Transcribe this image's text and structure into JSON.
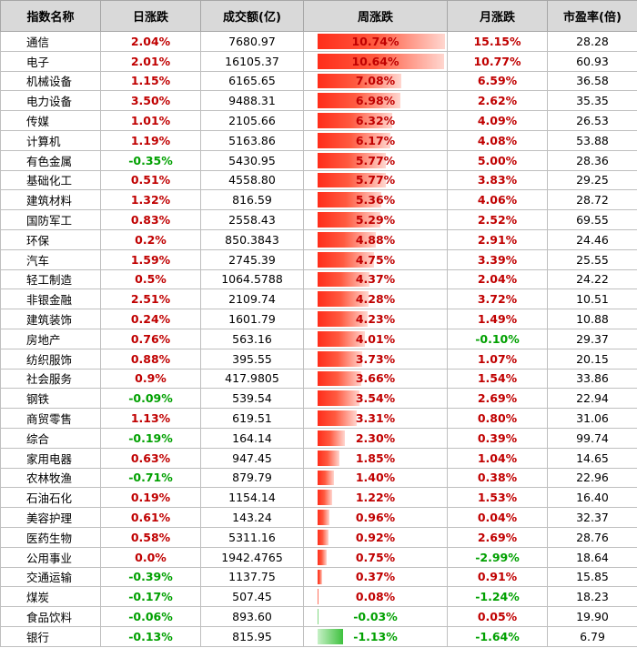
{
  "headers": [
    "指数名称",
    "日涨跌",
    "成交额(亿)",
    "周涨跌",
    "月涨跌",
    "市盈率(倍)"
  ],
  "rows": [
    {
      "name": "通信",
      "daily": "2.04%",
      "volume": "7680.97",
      "weekly": "10.74%",
      "weekly_value": 10.74,
      "monthly": "15.15%",
      "pe": "28.28"
    },
    {
      "name": "电子",
      "daily": "2.01%",
      "volume": "16105.37",
      "weekly": "10.64%",
      "weekly_value": 10.64,
      "monthly": "10.77%",
      "pe": "60.93"
    },
    {
      "name": "机械设备",
      "daily": "1.15%",
      "volume": "6165.65",
      "weekly": "7.08%",
      "weekly_value": 7.08,
      "monthly": "6.59%",
      "pe": "36.58"
    },
    {
      "name": "电力设备",
      "daily": "3.50%",
      "volume": "9488.31",
      "weekly": "6.98%",
      "weekly_value": 6.98,
      "monthly": "2.62%",
      "pe": "35.35"
    },
    {
      "name": "传媒",
      "daily": "1.01%",
      "volume": "2105.66",
      "weekly": "6.32%",
      "weekly_value": 6.32,
      "monthly": "4.09%",
      "pe": "26.53"
    },
    {
      "name": "计算机",
      "daily": "1.19%",
      "volume": "5163.86",
      "weekly": "6.17%",
      "weekly_value": 6.17,
      "monthly": "4.08%",
      "pe": "53.88"
    },
    {
      "name": "有色金属",
      "daily": "-0.35%",
      "volume": "5430.95",
      "weekly": "5.77%",
      "weekly_value": 5.77,
      "monthly": "5.00%",
      "pe": "28.36"
    },
    {
      "name": "基础化工",
      "daily": "0.51%",
      "volume": "4558.80",
      "weekly": "5.77%",
      "weekly_value": 5.77,
      "monthly": "3.83%",
      "pe": "29.25"
    },
    {
      "name": "建筑材料",
      "daily": "1.32%",
      "volume": "816.59",
      "weekly": "5.36%",
      "weekly_value": 5.36,
      "monthly": "4.06%",
      "pe": "28.72"
    },
    {
      "name": "国防军工",
      "daily": "0.83%",
      "volume": "2558.43",
      "weekly": "5.29%",
      "weekly_value": 5.29,
      "monthly": "2.52%",
      "pe": "69.55"
    },
    {
      "name": "环保",
      "daily": "0.2%",
      "volume": "850.3843",
      "weekly": "4.88%",
      "weekly_value": 4.88,
      "monthly": "2.91%",
      "pe": "24.46"
    },
    {
      "name": "汽车",
      "daily": "1.59%",
      "volume": "2745.39",
      "weekly": "4.75%",
      "weekly_value": 4.75,
      "monthly": "3.39%",
      "pe": "25.55"
    },
    {
      "name": "轻工制造",
      "daily": "0.5%",
      "volume": "1064.5788",
      "weekly": "4.37%",
      "weekly_value": 4.37,
      "monthly": "2.04%",
      "pe": "24.22"
    },
    {
      "name": "非银金融",
      "daily": "2.51%",
      "volume": "2109.74",
      "weekly": "4.28%",
      "weekly_value": 4.28,
      "monthly": "3.72%",
      "pe": "10.51"
    },
    {
      "name": "建筑装饰",
      "daily": "0.24%",
      "volume": "1601.79",
      "weekly": "4.23%",
      "weekly_value": 4.23,
      "monthly": "1.49%",
      "pe": "10.88"
    },
    {
      "name": "房地产",
      "daily": "0.76%",
      "volume": "563.16",
      "weekly": "4.01%",
      "weekly_value": 4.01,
      "monthly": "-0.10%",
      "pe": "29.37"
    },
    {
      "name": "纺织服饰",
      "daily": "0.88%",
      "volume": "395.55",
      "weekly": "3.73%",
      "weekly_value": 3.73,
      "monthly": "1.07%",
      "pe": "20.15"
    },
    {
      "name": "社会服务",
      "daily": "0.9%",
      "volume": "417.9805",
      "weekly": "3.66%",
      "weekly_value": 3.66,
      "monthly": "1.54%",
      "pe": "33.86"
    },
    {
      "name": "钢铁",
      "daily": "-0.09%",
      "volume": "539.54",
      "weekly": "3.54%",
      "weekly_value": 3.54,
      "monthly": "2.69%",
      "pe": "22.94"
    },
    {
      "name": "商贸零售",
      "daily": "1.13%",
      "volume": "619.51",
      "weekly": "3.31%",
      "weekly_value": 3.31,
      "monthly": "0.80%",
      "pe": "31.06"
    },
    {
      "name": "综合",
      "daily": "-0.19%",
      "volume": "164.14",
      "weekly": "2.30%",
      "weekly_value": 2.3,
      "monthly": "0.39%",
      "pe": "99.74"
    },
    {
      "name": "家用电器",
      "daily": "0.63%",
      "volume": "947.45",
      "weekly": "1.85%",
      "weekly_value": 1.85,
      "monthly": "1.04%",
      "pe": "14.65"
    },
    {
      "name": "农林牧渔",
      "daily": "-0.71%",
      "volume": "879.79",
      "weekly": "1.40%",
      "weekly_value": 1.4,
      "monthly": "0.38%",
      "pe": "22.96"
    },
    {
      "name": "石油石化",
      "daily": "0.19%",
      "volume": "1154.14",
      "weekly": "1.22%",
      "weekly_value": 1.22,
      "monthly": "1.53%",
      "pe": "16.40"
    },
    {
      "name": "美容护理",
      "daily": "0.61%",
      "volume": "143.24",
      "weekly": "0.96%",
      "weekly_value": 0.96,
      "monthly": "0.04%",
      "pe": "32.37"
    },
    {
      "name": "医药生物",
      "daily": "0.58%",
      "volume": "5311.16",
      "weekly": "0.92%",
      "weekly_value": 0.92,
      "monthly": "2.69%",
      "pe": "28.76"
    },
    {
      "name": "公用事业",
      "daily": "0.0%",
      "volume": "1942.4765",
      "weekly": "0.75%",
      "weekly_value": 0.75,
      "monthly": "-2.99%",
      "pe": "18.64"
    },
    {
      "name": "交通运输",
      "daily": "-0.39%",
      "volume": "1137.75",
      "weekly": "0.37%",
      "weekly_value": 0.37,
      "monthly": "0.91%",
      "pe": "15.85"
    },
    {
      "name": "煤炭",
      "daily": "-0.17%",
      "volume": "507.45",
      "weekly": "0.08%",
      "weekly_value": 0.08,
      "monthly": "-1.24%",
      "pe": "18.23"
    },
    {
      "name": "食品饮料",
      "daily": "-0.06%",
      "volume": "893.60",
      "weekly": "-0.03%",
      "weekly_value": -0.03,
      "monthly": "0.05%",
      "pe": "19.90"
    },
    {
      "name": "银行",
      "daily": "-0.13%",
      "volume": "815.95",
      "weekly": "-1.13%",
      "weekly_value": -1.13,
      "monthly": "-1.64%",
      "pe": "6.79"
    }
  ],
  "colors": {
    "up": "#c00000",
    "down": "#00a000",
    "bar_up": "#ff2d1a",
    "bar_down": "#3ec13e",
    "header_bg": "#d9d9d9"
  }
}
